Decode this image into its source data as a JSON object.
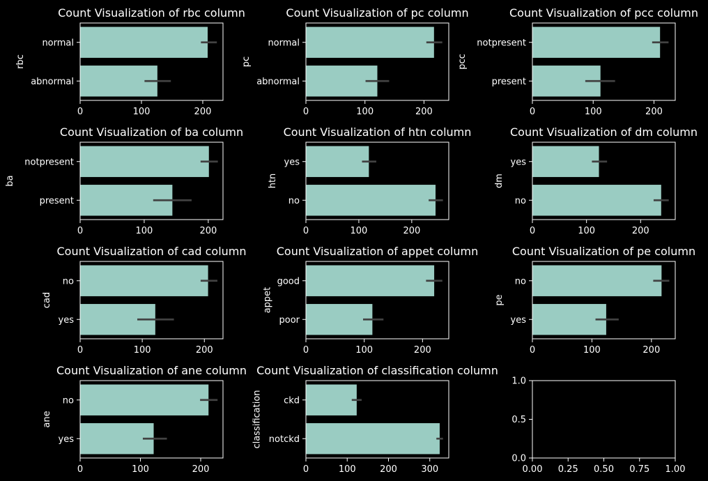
{
  "chart_data": [
    {
      "type": "bar",
      "orientation": "horizontal",
      "title": "Count Visualization of rbc column",
      "ylabel": "rbc",
      "categories": [
        "normal",
        "abnormal"
      ],
      "values": [
        208,
        126
      ],
      "errors": [
        [
          197,
          223
        ],
        [
          105,
          148
        ]
      ],
      "xlim": [
        0,
        233
      ],
      "xticks": [
        "0",
        "100",
        "200"
      ]
    },
    {
      "type": "bar",
      "orientation": "horizontal",
      "title": "Count Visualization of pc column",
      "ylabel": "pc",
      "categories": [
        "normal",
        "abnormal"
      ],
      "values": [
        217,
        121
      ],
      "errors": [
        [
          204,
          231
        ],
        [
          101,
          141
        ]
      ],
      "xlim": [
        0,
        242
      ],
      "xticks": [
        "0",
        "100",
        "200"
      ]
    },
    {
      "type": "bar",
      "orientation": "horizontal",
      "title": "Count Visualization of pcc column",
      "ylabel": "pcc",
      "categories": [
        "notpresent",
        "present"
      ],
      "values": [
        210,
        112
      ],
      "errors": [
        [
          197,
          224
        ],
        [
          87,
          136
        ]
      ],
      "xlim": [
        0,
        235
      ],
      "xticks": [
        "0",
        "100",
        "200"
      ]
    },
    {
      "type": "bar",
      "orientation": "horizontal",
      "title": "Count Visualization of ba column",
      "ylabel": "ba",
      "categories": [
        "notpresent",
        "present"
      ],
      "values": [
        201,
        144
      ],
      "errors": [
        [
          188,
          215
        ],
        [
          114,
          174
        ]
      ],
      "xlim": [
        0,
        223
      ],
      "xticks": [
        "0",
        "100",
        "200"
      ]
    },
    {
      "type": "bar",
      "orientation": "horizontal",
      "title": "Count Visualization of htn column",
      "ylabel": "htn",
      "categories": [
        "yes",
        "no"
      ],
      "values": [
        119,
        245
      ],
      "errors": [
        [
          106,
          133
        ],
        [
          232,
          259
        ]
      ],
      "xlim": [
        0,
        270
      ],
      "xticks": [
        "0",
        "100",
        "200"
      ]
    },
    {
      "type": "bar",
      "orientation": "horizontal",
      "title": "Count Visualization of dm column",
      "ylabel": "dm",
      "categories": [
        "yes",
        "no"
      ],
      "values": [
        123,
        238
      ],
      "errors": [
        [
          110,
          138
        ],
        [
          224,
          252
        ]
      ],
      "xlim": [
        0,
        264
      ],
      "xticks": [
        "0",
        "100",
        "200"
      ]
    },
    {
      "type": "bar",
      "orientation": "horizontal",
      "title": "Count Visualization of cad column",
      "ylabel": "cad",
      "categories": [
        "no",
        "yes"
      ],
      "values": [
        206,
        121
      ],
      "errors": [
        [
          194,
          221
        ],
        [
          92,
          151
        ]
      ],
      "xlim": [
        0,
        230
      ],
      "xticks": [
        "0",
        "100",
        "200"
      ]
    },
    {
      "type": "bar",
      "orientation": "horizontal",
      "title": "Count Visualization of appet column",
      "ylabel": "appet",
      "categories": [
        "good",
        "poor"
      ],
      "values": [
        220,
        114
      ],
      "errors": [
        [
          206,
          234
        ],
        [
          98,
          133
        ]
      ],
      "xlim": [
        0,
        245
      ],
      "xticks": [
        "0",
        "100",
        "200"
      ]
    },
    {
      "type": "bar",
      "orientation": "horizontal",
      "title": "Count Visualization of pe column",
      "ylabel": "pe",
      "categories": [
        "no",
        "yes"
      ],
      "values": [
        217,
        124
      ],
      "errors": [
        [
          203,
          230
        ],
        [
          106,
          145
        ]
      ],
      "xlim": [
        0,
        240
      ],
      "xticks": [
        "0",
        "100",
        "200"
      ]
    },
    {
      "type": "bar",
      "orientation": "horizontal",
      "title": "Count Visualization of ane column",
      "ylabel": "ane",
      "categories": [
        "no",
        "yes"
      ],
      "values": [
        213,
        122
      ],
      "errors": [
        [
          199,
          228
        ],
        [
          104,
          144
        ]
      ],
      "xlim": [
        0,
        237
      ],
      "xticks": [
        "0",
        "100",
        "200"
      ]
    },
    {
      "type": "bar",
      "orientation": "horizontal",
      "title": "Count Visualization of classification column",
      "ylabel": "classification",
      "categories": [
        "ckd",
        "notckd"
      ],
      "values": [
        123,
        324
      ],
      "errors": [
        [
          111,
          135
        ],
        [
          316,
          332
        ]
      ],
      "xlim": [
        0,
        346
      ],
      "xticks": [
        "0",
        "100",
        "200",
        "300"
      ]
    },
    {
      "type": "empty",
      "title": "",
      "xlim": [
        0,
        1
      ],
      "ylim": [
        0,
        1
      ],
      "xticks": [
        "0.00",
        "0.25",
        "0.50",
        "0.75",
        "1.00"
      ],
      "yticks": [
        "0.0",
        "0.5",
        "1.0"
      ]
    }
  ],
  "colors": {
    "background": "#000000",
    "bar": "#9accc2",
    "errorbar": "#424242",
    "axes": "#ffffff",
    "text": "#ffffff"
  },
  "grid": false
}
